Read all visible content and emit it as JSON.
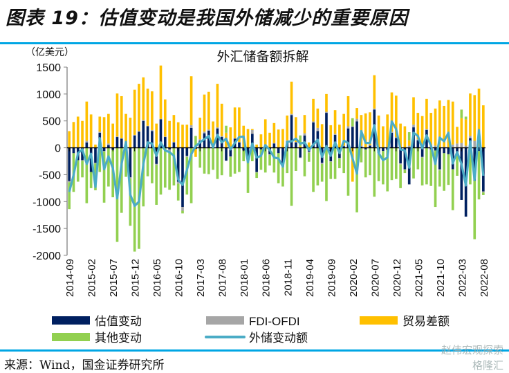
{
  "figure_title": "图表 19：估值变动是我国外储减少的重要原因",
  "source": "来源：Wind，国金证券研究所",
  "watermarks": [
    "赵伟宏观探索",
    "格隆汇"
  ],
  "chart_data": {
    "type": "bar",
    "stacked": true,
    "title": "外汇储备额拆解",
    "ylabel": "（亿美元）",
    "xlabel": "",
    "ylim": [
      -2000,
      1500
    ],
    "yticks": [
      -2000,
      -1500,
      -1000,
      -500,
      0,
      500,
      1000,
      1500
    ],
    "grid": false,
    "legend_position": "bottom",
    "x_tick_labels": [
      "2014-09",
      "2015-02",
      "2015-07",
      "2015-12",
      "2016-05",
      "2016-10",
      "2017-03",
      "2017-08",
      "2018-01",
      "2018-06",
      "2018-11",
      "2019-04",
      "2019-09",
      "2020-02",
      "2020-07",
      "2020-12",
      "2021-05",
      "2021-10",
      "2022-03",
      "2022-08"
    ],
    "categories": [
      "2014-09",
      "2014-10",
      "2014-11",
      "2014-12",
      "2015-01",
      "2015-02",
      "2015-03",
      "2015-04",
      "2015-05",
      "2015-06",
      "2015-07",
      "2015-08",
      "2015-09",
      "2015-10",
      "2015-11",
      "2015-12",
      "2016-01",
      "2016-02",
      "2016-03",
      "2016-04",
      "2016-05",
      "2016-06",
      "2016-07",
      "2016-08",
      "2016-09",
      "2016-10",
      "2016-11",
      "2016-12",
      "2017-01",
      "2017-02",
      "2017-03",
      "2017-04",
      "2017-05",
      "2017-06",
      "2017-07",
      "2017-08",
      "2017-09",
      "2017-10",
      "2017-11",
      "2017-12",
      "2018-01",
      "2018-02",
      "2018-03",
      "2018-04",
      "2018-05",
      "2018-06",
      "2018-07",
      "2018-08",
      "2018-09",
      "2018-10",
      "2018-11",
      "2018-12",
      "2019-01",
      "2019-02",
      "2019-03",
      "2019-04",
      "2019-05",
      "2019-06",
      "2019-07",
      "2019-08",
      "2019-09",
      "2019-10",
      "2019-11",
      "2019-12",
      "2020-01",
      "2020-02",
      "2020-03",
      "2020-04",
      "2020-05",
      "2020-06",
      "2020-07",
      "2020-08",
      "2020-09",
      "2020-10",
      "2020-11",
      "2020-12",
      "2021-01",
      "2021-02",
      "2021-03",
      "2021-04",
      "2021-05",
      "2021-06",
      "2021-07",
      "2021-08",
      "2021-09",
      "2021-10",
      "2021-11",
      "2021-12",
      "2022-01",
      "2022-02",
      "2022-03",
      "2022-04",
      "2022-05",
      "2022-06",
      "2022-07",
      "2022-08"
    ],
    "series": [
      {
        "name": "估值变动",
        "type": "bar",
        "color": "#002060",
        "values": [
          -620,
          -100,
          -230,
          -230,
          100,
          -450,
          -280,
          280,
          -60,
          50,
          -40,
          200,
          170,
          -30,
          -550,
          230,
          300,
          500,
          400,
          310,
          -300,
          530,
          200,
          -30,
          100,
          -630,
          -1100,
          -150,
          370,
          -20,
          130,
          270,
          320,
          40,
          360,
          200,
          -240,
          -160,
          170,
          100,
          -50,
          -200,
          260,
          -450,
          -30,
          40,
          -120,
          80,
          -100,
          -350,
          120,
          610,
          100,
          -180,
          230,
          -70,
          470,
          310,
          -280,
          650,
          -250,
          240,
          -190,
          30,
          360,
          390,
          490,
          20,
          -30,
          40,
          710,
          -100,
          -60,
          -40,
          280,
          180,
          -290,
          -400,
          -680,
          380,
          140,
          -170,
          330,
          -30,
          -50,
          -400,
          -100,
          -120,
          -400,
          -130,
          -970,
          -1280,
          180,
          -610,
          -60,
          -810
        ]
      },
      {
        "name": "FDI-OFDI",
        "type": "bar",
        "color": "#a6a6a6",
        "values": [
          -20,
          10,
          10,
          -10,
          30,
          10,
          -10,
          20,
          -10,
          30,
          10,
          10,
          10,
          10,
          -20,
          10,
          10,
          20,
          10,
          20,
          -20,
          10,
          10,
          -60,
          10,
          -40,
          -70,
          -20,
          50,
          10,
          30,
          30,
          20,
          10,
          20,
          20,
          10,
          -10,
          10,
          10,
          10,
          -10,
          70,
          -10,
          10,
          10,
          -10,
          10,
          10,
          -10,
          20,
          20,
          10,
          -10,
          40,
          -20,
          20,
          60,
          -20,
          20,
          -10,
          20,
          -10,
          10,
          40,
          10,
          50,
          20,
          10,
          10,
          20,
          -10,
          10,
          10,
          20,
          20,
          -20,
          -10,
          40,
          50,
          20,
          -10,
          20,
          10,
          40,
          -20,
          20,
          10,
          60,
          80,
          90,
          40,
          40,
          130,
          40,
          -20
        ]
      },
      {
        "name": "贸易差额",
        "type": "bar",
        "color": "#ffc000",
        "values": [
          310,
          470,
          570,
          500,
          730,
          610,
          60,
          280,
          570,
          550,
          440,
          800,
          780,
          620,
          560,
          840,
          880,
          790,
          690,
          720,
          450,
          990,
          690,
          500,
          500,
          475,
          430,
          430,
          910,
          -150,
          400,
          690,
          700,
          440,
          810,
          600,
          270,
          380,
          570,
          640,
          400,
          350,
          20,
          60,
          240,
          480,
          280,
          370,
          330,
          350,
          460,
          600,
          460,
          30,
          340,
          100,
          420,
          360,
          440,
          330,
          420,
          440,
          430,
          590,
          560,
          -630,
          200,
          570,
          630,
          610,
          620,
          600,
          390,
          610,
          730,
          770,
          450,
          400,
          100,
          510,
          490,
          590,
          560,
          640,
          690,
          880,
          760,
          880,
          800,
          310,
          460,
          490,
          790,
          850,
          1060,
          790
        ]
      },
      {
        "name": "其他变动",
        "type": "bar",
        "color": "#92d050",
        "values": [
          -500,
          -720,
          -400,
          -310,
          -1030,
          -300,
          -500,
          -450,
          -950,
          -720,
          -880,
          -1750,
          -1210,
          -510,
          -880,
          -1930,
          -1880,
          -1090,
          -530,
          -660,
          -740,
          -870,
          -740,
          -690,
          -700,
          -310,
          -50,
          -700,
          -1030,
          210,
          -370,
          -480,
          -490,
          -410,
          -580,
          -510,
          130,
          -370,
          -480,
          -450,
          -200,
          -630,
          -250,
          -100,
          -380,
          -460,
          -200,
          -460,
          -560,
          -360,
          -470,
          -1080,
          -430,
          200,
          -530,
          -170,
          -820,
          -700,
          -330,
          -990,
          -320,
          -580,
          -180,
          -470,
          -890,
          150,
          -1200,
          -270,
          -520,
          -510,
          -910,
          -510,
          -620,
          -770,
          -600,
          -580,
          -440,
          -60,
          150,
          -570,
          -400,
          -520,
          -680,
          -680,
          -1050,
          -300,
          -700,
          -570,
          -760,
          -390,
          160,
          50,
          -680,
          -1090,
          -900,
          -50
        ]
      },
      {
        "name": "外储变动额",
        "type": "line",
        "color": "#4bacc6",
        "values": [
          -820,
          -500,
          -100,
          -30,
          -300,
          -110,
          -730,
          180,
          -400,
          -160,
          -380,
          -940,
          -300,
          110,
          -870,
          -1080,
          -1000,
          -300,
          100,
          80,
          -150,
          100,
          -50,
          -80,
          -150,
          -590,
          -690,
          -410,
          -120,
          30,
          100,
          160,
          220,
          10,
          240,
          100,
          170,
          -30,
          90,
          200,
          210,
          -270,
          80,
          -180,
          -150,
          50,
          -40,
          -180,
          -200,
          -350,
          110,
          120,
          170,
          80,
          100,
          -40,
          60,
          150,
          -170,
          30,
          -150,
          100,
          -100,
          130,
          90,
          -200,
          -480,
          310,
          90,
          90,
          420,
          -100,
          -230,
          -180,
          490,
          350,
          -30,
          -50,
          -370,
          280,
          220,
          -10,
          230,
          40,
          -300,
          190,
          120,
          280,
          -290,
          -80,
          -300,
          -700,
          120,
          -600,
          330,
          -520
        ]
      }
    ]
  }
}
